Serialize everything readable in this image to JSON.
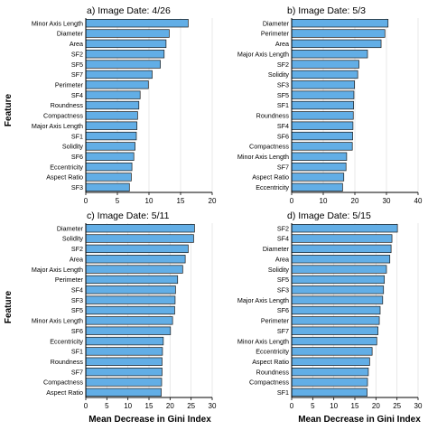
{
  "figure": {
    "y_axis_label": "Feature",
    "x_axis_label": "Mean Decrease in Gini Index"
  },
  "chart_data": [
    {
      "type": "bar",
      "orientation": "horizontal",
      "title": "a) Image Date: 4/26",
      "xlabel": "",
      "ylabel": "Feature",
      "xlim": [
        0,
        20
      ],
      "xticks": [
        0,
        5,
        10,
        15,
        20
      ],
      "grid": true,
      "categories": [
        "Minor Axis Length",
        "Diameter",
        "Area",
        "SF2",
        "SF5",
        "SF7",
        "Perimeter",
        "SF4",
        "Roundness",
        "Compactness",
        "Major Axis Length",
        "SF1",
        "Solidity",
        "SF6",
        "Eccentricity",
        "Aspect Ratio",
        "SF3"
      ],
      "values": [
        16.2,
        13.2,
        12.7,
        12.4,
        11.8,
        10.5,
        9.9,
        8.6,
        8.4,
        8.2,
        8.1,
        8.0,
        7.8,
        7.6,
        7.3,
        7.2,
        6.9
      ]
    },
    {
      "type": "bar",
      "orientation": "horizontal",
      "title": "b) Image Date: 5/3",
      "xlabel": "",
      "ylabel": "",
      "xlim": [
        0,
        40
      ],
      "xticks": [
        0,
        10,
        20,
        30,
        40
      ],
      "grid": true,
      "categories": [
        "Diameter",
        "Perimeter",
        "Area",
        "Major Axis Length",
        "SF2",
        "Solidity",
        "SF3",
        "SF5",
        "SF1",
        "Roundness",
        "SF4",
        "SF6",
        "Compactness",
        "Minor Axis Length",
        "SF7",
        "Aspect Ratio",
        "Eccentricity"
      ],
      "values": [
        30.5,
        29.5,
        28.3,
        24.0,
        21.3,
        20.9,
        19.9,
        19.7,
        19.6,
        19.5,
        19.4,
        19.3,
        19.2,
        17.4,
        17.2,
        16.5,
        16.1
      ]
    },
    {
      "type": "bar",
      "orientation": "horizontal",
      "title": "c) Image Date: 5/11",
      "xlabel": "Mean Decrease in Gini Index",
      "ylabel": "Feature",
      "xlim": [
        0,
        30
      ],
      "xticks": [
        0,
        5,
        10,
        15,
        20,
        25,
        30
      ],
      "grid": true,
      "categories": [
        "Diameter",
        "Solidity",
        "SF2",
        "Area",
        "Major Axis Length",
        "Perimeter",
        "SF4",
        "SF3",
        "SF5",
        "Minor Axis Length",
        "SF6",
        "Eccentricity",
        "SF1",
        "Roundness",
        "SF7",
        "Compactness",
        "Aspect Ratio"
      ],
      "values": [
        25.8,
        25.6,
        24.3,
        23.6,
        23.0,
        21.8,
        21.3,
        21.2,
        21.1,
        20.6,
        20.1,
        18.4,
        18.2,
        18.1,
        18.1,
        18.0,
        17.9
      ]
    },
    {
      "type": "bar",
      "orientation": "horizontal",
      "title": "d) Image Date: 5/15",
      "xlabel": "Mean Decrease in Gini Index",
      "ylabel": "",
      "xlim": [
        0,
        30
      ],
      "xticks": [
        0,
        5,
        10,
        15,
        20,
        25,
        30
      ],
      "grid": true,
      "categories": [
        "SF2",
        "SF4",
        "Diameter",
        "Area",
        "Solidity",
        "SF5",
        "SF3",
        "Major Axis Length",
        "SF6",
        "Perimeter",
        "SF7",
        "Minor Axis Length",
        "Eccentricity",
        "Aspect Ratio",
        "Roundness",
        "Compactness",
        "SF1"
      ],
      "values": [
        25.1,
        23.8,
        23.6,
        23.3,
        22.5,
        22.0,
        21.8,
        21.6,
        21.0,
        20.8,
        20.5,
        20.2,
        19.1,
        18.5,
        18.2,
        18.0,
        17.9
      ]
    }
  ],
  "style": {
    "bar_fill": "#62aee6",
    "bar_stroke": "#1a1a1a",
    "grid_color": "#e3e3e3",
    "axis_color": "#000000",
    "text_color": "#000000"
  }
}
